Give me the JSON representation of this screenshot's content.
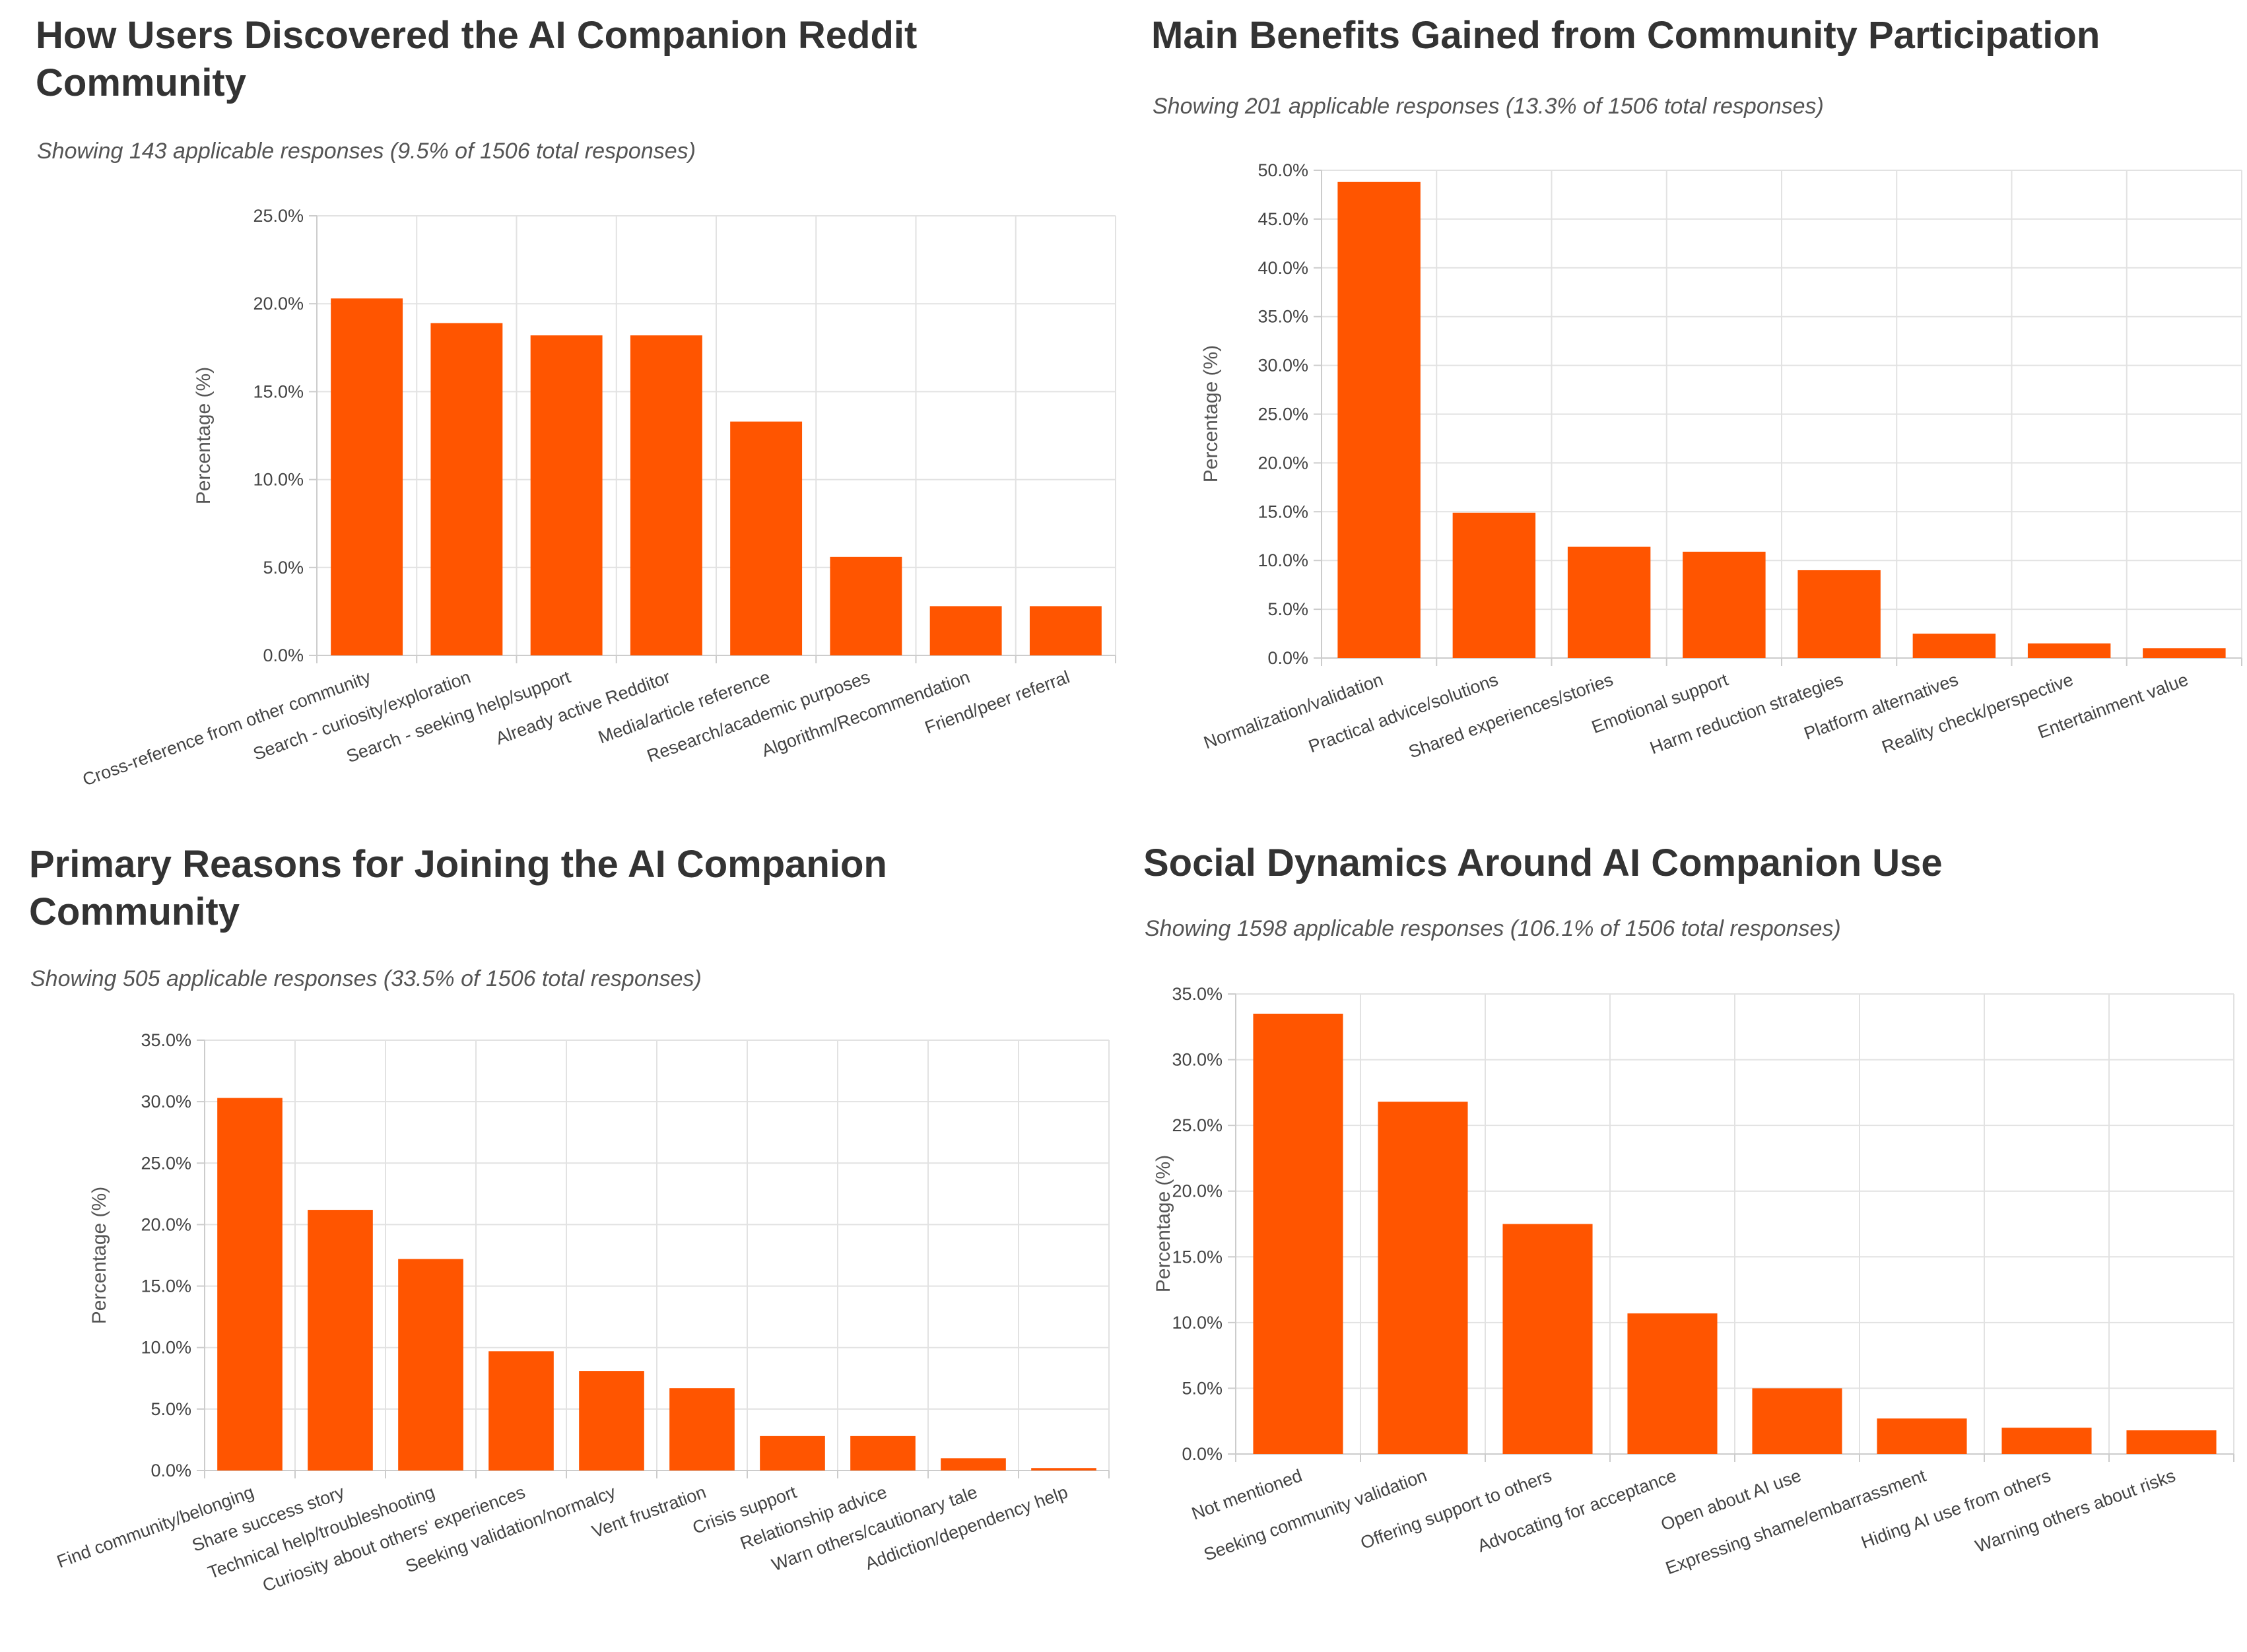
{
  "colors": {
    "bar": "#ff5500",
    "grid": "#e2e2e2",
    "axis": "#cccccc"
  },
  "chart_data": [
    {
      "type": "bar",
      "title": "How Users Discovered the AI Companion Reddit Community",
      "subtitle": "Showing 143 applicable responses (9.5% of 1506 total responses)",
      "ylabel": "Percentage (%)",
      "ylim": [
        0,
        25
      ],
      "yticks": [
        "0.0%",
        "5.0%",
        "10.0%",
        "15.0%",
        "20.0%",
        "25.0%"
      ],
      "grid": true,
      "categories": [
        "Cross-reference from other community",
        "Search - curiosity/exploration",
        "Search - seeking help/support",
        "Already active Redditor",
        "Media/article reference",
        "Research/academic purposes",
        "Algorithm/Recommendation",
        "Friend/peer referral"
      ],
      "values": [
        20.3,
        18.9,
        18.2,
        18.2,
        13.3,
        5.6,
        2.8,
        2.8
      ]
    },
    {
      "type": "bar",
      "title": "Main Benefits Gained from Community Participation",
      "subtitle": "Showing 201 applicable responses (13.3% of 1506 total responses)",
      "ylabel": "Percentage (%)",
      "ylim": [
        0,
        50
      ],
      "yticks": [
        "0.0%",
        "5.0%",
        "10.0%",
        "15.0%",
        "20.0%",
        "25.0%",
        "30.0%",
        "35.0%",
        "40.0%",
        "45.0%",
        "50.0%"
      ],
      "grid": true,
      "categories": [
        "Normalization/validation",
        "Practical advice/solutions",
        "Shared experiences/stories",
        "Emotional support",
        "Harm reduction strategies",
        "Platform alternatives",
        "Reality check/perspective",
        "Entertainment value"
      ],
      "values": [
        48.8,
        14.9,
        11.4,
        10.9,
        9.0,
        2.5,
        1.5,
        1.0
      ]
    },
    {
      "type": "bar",
      "title": "Primary Reasons for Joining the AI Companion Community",
      "subtitle": "Showing 505 applicable responses (33.5% of 1506 total responses)",
      "ylabel": "Percentage (%)",
      "ylim": [
        0,
        35
      ],
      "yticks": [
        "0.0%",
        "5.0%",
        "10.0%",
        "15.0%",
        "20.0%",
        "25.0%",
        "30.0%",
        "35.0%"
      ],
      "grid": true,
      "categories": [
        "Find community/belonging",
        "Share success story",
        "Technical help/troubleshooting",
        "Curiosity about others' experiences",
        "Seeking validation/normalcy",
        "Vent frustration",
        "Crisis support",
        "Relationship advice",
        "Warn others/cautionary tale",
        "Addiction/dependency help"
      ],
      "values": [
        30.3,
        21.2,
        17.2,
        9.7,
        8.1,
        6.7,
        2.8,
        2.8,
        1.0,
        0.2
      ]
    },
    {
      "type": "bar",
      "title": "Social Dynamics Around AI Companion Use",
      "subtitle": "Showing 1598 applicable responses (106.1% of 1506 total responses)",
      "ylabel": "Percentage (%)",
      "ylim": [
        0,
        35
      ],
      "yticks": [
        "0.0%",
        "5.0%",
        "10.0%",
        "15.0%",
        "20.0%",
        "25.0%",
        "30.0%",
        "35.0%"
      ],
      "grid": true,
      "categories": [
        "Not mentioned",
        "Seeking community validation",
        "Offering support to others",
        "Advocating for acceptance",
        "Open about AI use",
        "Expressing shame/embarrassment",
        "Hiding AI use from others",
        "Warning others about risks"
      ],
      "values": [
        33.5,
        26.8,
        17.5,
        10.7,
        5.0,
        2.7,
        2.0,
        1.8
      ]
    }
  ]
}
